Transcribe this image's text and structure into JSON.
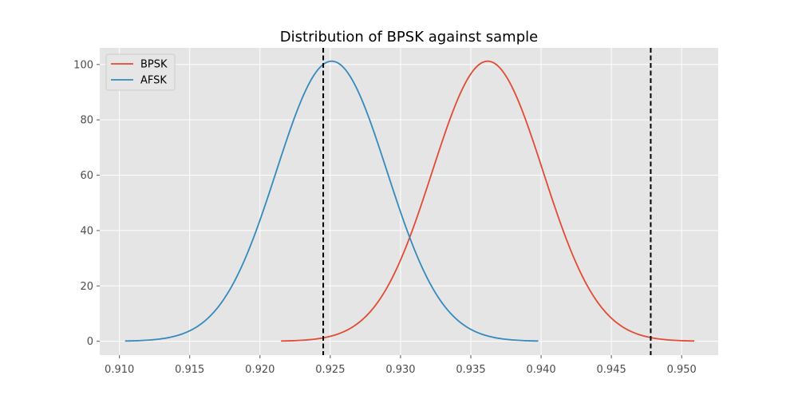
{
  "chart_data": {
    "type": "line",
    "title": "Distribution of BPSK against sample",
    "xlabel": "",
    "ylabel": "",
    "xlim": [
      0.9086,
      0.9526
    ],
    "ylim": [
      -5.0,
      106.0
    ],
    "x_ticks": [
      0.91,
      0.915,
      0.92,
      0.925,
      0.93,
      0.935,
      0.94,
      0.945,
      0.95
    ],
    "x_tick_labels": [
      "0.910",
      "0.915",
      "0.920",
      "0.925",
      "0.930",
      "0.935",
      "0.940",
      "0.945",
      "0.950"
    ],
    "y_ticks": [
      0,
      20,
      40,
      60,
      80,
      100
    ],
    "y_tick_labels": [
      "0",
      "20",
      "40",
      "60",
      "80",
      "100"
    ],
    "grid": true,
    "legend_position": "top-left",
    "series": [
      {
        "name": "BPSK",
        "color": "#e24a33",
        "distribution": "normal",
        "mean": 0.9362,
        "std": 0.00394,
        "x_range": [
          0.9215,
          0.9509
        ],
        "peak": 101.2
      },
      {
        "name": "AFSK",
        "color": "#348abd",
        "distribution": "normal",
        "mean": 0.9251,
        "std": 0.00394,
        "x_range": [
          0.9104,
          0.9398
        ],
        "peak": 101.2
      }
    ],
    "vertical_lines": [
      {
        "x": 0.9245,
        "color": "#000000",
        "style": "dashed"
      },
      {
        "x": 0.9478,
        "color": "#000000",
        "style": "dashed"
      }
    ]
  },
  "style": {
    "background": "#ffffff",
    "axes_background": "#e5e5e5",
    "grid_color": "#ffffff"
  }
}
